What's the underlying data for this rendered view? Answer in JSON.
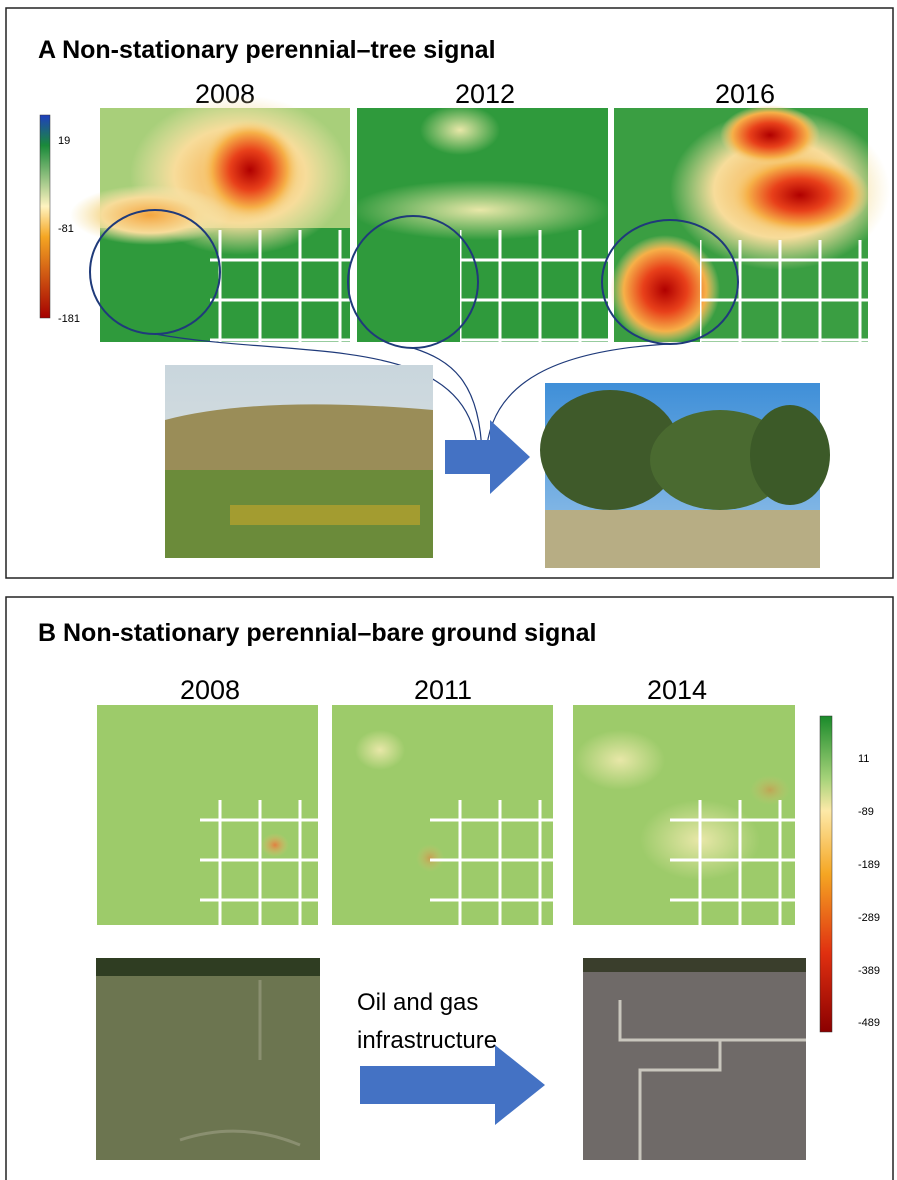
{
  "panel_a": {
    "title": "A  Non-stationary perennial–tree signal",
    "years": [
      "2008",
      "2012",
      "2016"
    ],
    "colorbar_ticks": [
      19,
      -81,
      -181
    ]
  },
  "panel_b": {
    "title": "B  Non-stationary perennial–bare ground signal",
    "years": [
      "2008",
      "2011",
      "2014"
    ],
    "colorbar_ticks": [
      11,
      -89,
      -189,
      -289,
      -389,
      -489
    ],
    "arrow_label": [
      "Oil and gas",
      "infrastructure"
    ]
  }
}
